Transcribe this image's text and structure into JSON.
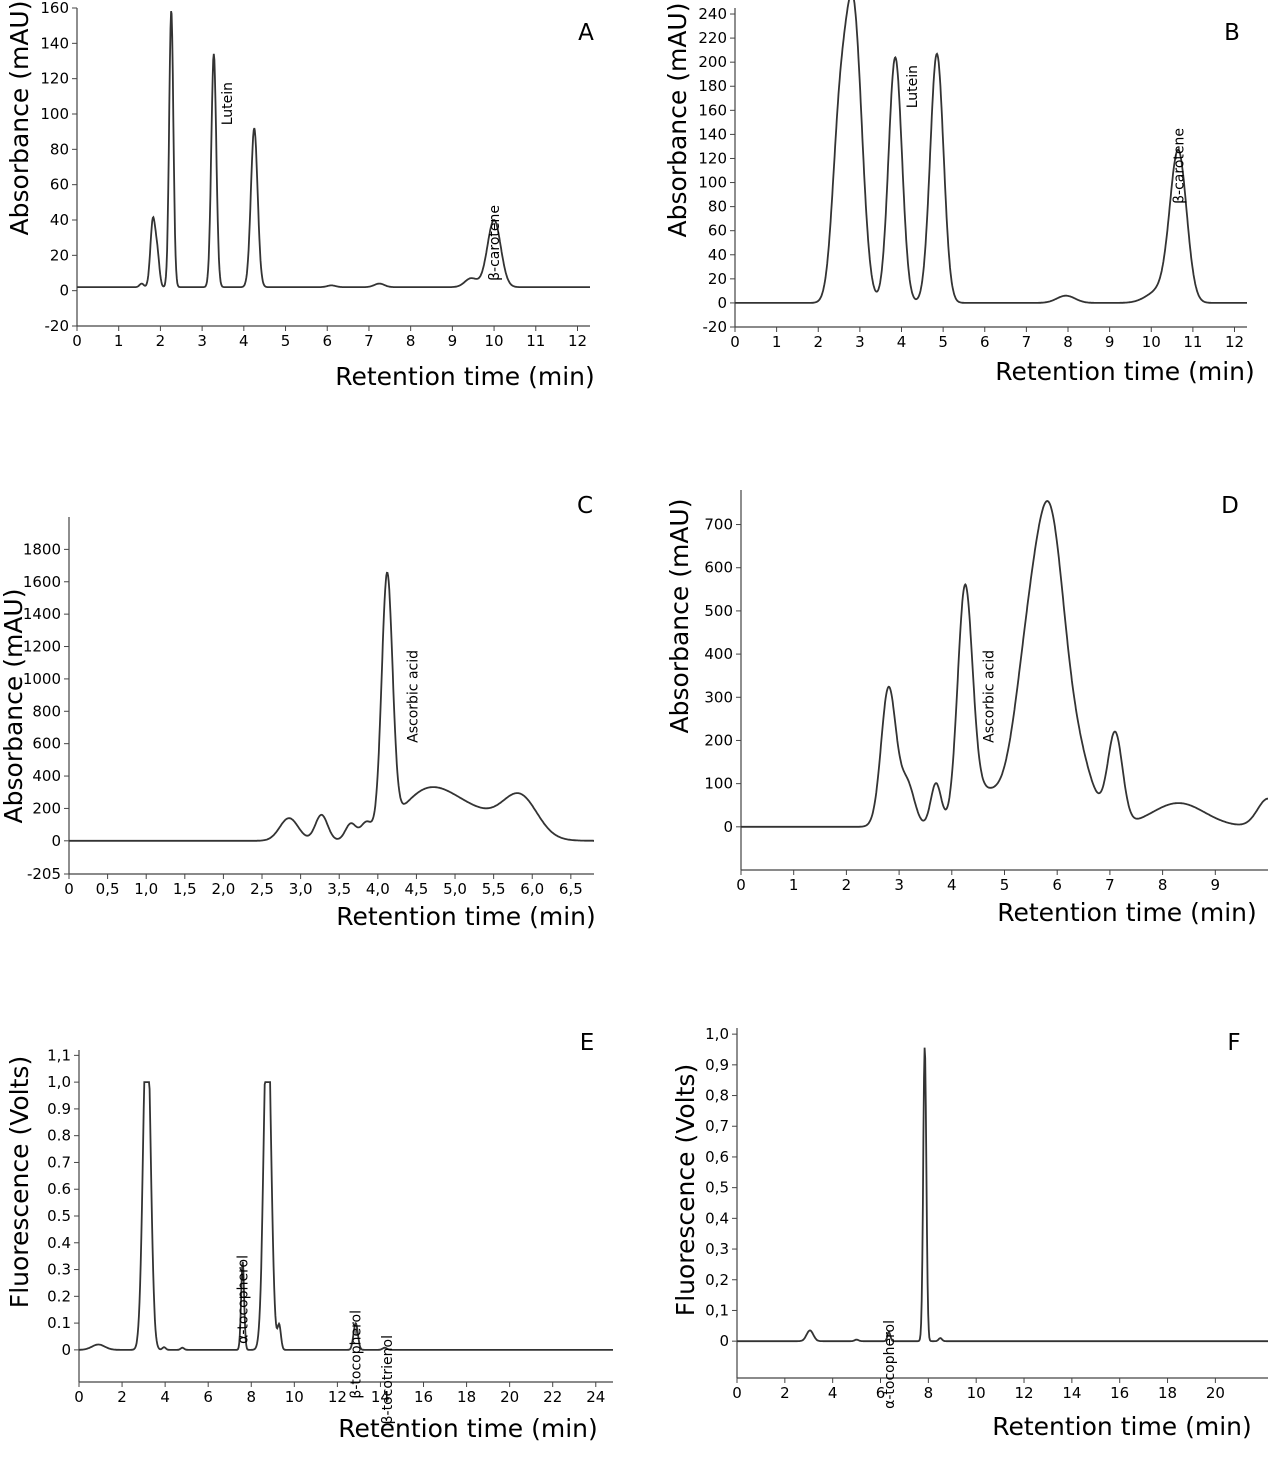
{
  "chart_data": [
    {
      "type": "line",
      "panel_label": "A",
      "xlabel": "Retention time (min)",
      "ylabel": "Absorbance (mAU)",
      "xlim": [
        0,
        12.3
      ],
      "ylim": [
        -20,
        160
      ],
      "x_ticks": [
        "0",
        "1",
        "2",
        "3",
        "4",
        "5",
        "6",
        "7",
        "8",
        "9",
        "10",
        "11",
        "12"
      ],
      "y_ticks": [
        "-20",
        "0",
        "20",
        "40",
        "60",
        "80",
        "100",
        "120",
        "140",
        "160"
      ],
      "baseline": 2,
      "peaks": [
        {
          "x": 1.55,
          "height": 2,
          "width": 0.05
        },
        {
          "x": 1.82,
          "height": 38,
          "width": 0.06
        },
        {
          "x": 1.93,
          "height": 16,
          "width": 0.05
        },
        {
          "x": 2.26,
          "height": 157,
          "width": 0.05
        },
        {
          "x": 3.28,
          "height": 132,
          "width": 0.06
        },
        {
          "x": 4.25,
          "height": 90,
          "width": 0.08
        },
        {
          "x": 6.1,
          "height": 1,
          "width": 0.1
        },
        {
          "x": 7.25,
          "height": 2,
          "width": 0.12
        },
        {
          "x": 9.45,
          "height": 5,
          "width": 0.15
        },
        {
          "x": 10.0,
          "height": 38,
          "width": 0.16
        }
      ],
      "annotations": [
        {
          "text": "Lutein",
          "x": 3.6
        },
        {
          "text": "β-carotene",
          "x": 10.0
        }
      ]
    },
    {
      "type": "line",
      "panel_label": "B",
      "xlabel": "Retention time (min)",
      "ylabel": "Absorbance (mAU)",
      "xlim": [
        0,
        12.3
      ],
      "ylim": [
        -20,
        245
      ],
      "x_ticks": [
        "0",
        "1",
        "2",
        "3",
        "4",
        "5",
        "6",
        "7",
        "8",
        "9",
        "10",
        "11",
        "12"
      ],
      "y_ticks": [
        "-20",
        "0",
        "20",
        "40",
        "60",
        "80",
        "100",
        "120",
        "140",
        "160",
        "180",
        "200",
        "220",
        "240"
      ],
      "baseline": 0,
      "peaks": [
        {
          "x": 2.5,
          "height": 128,
          "width": 0.17
        },
        {
          "x": 2.85,
          "height": 238,
          "width": 0.2
        },
        {
          "x": 3.85,
          "height": 204,
          "width": 0.16
        },
        {
          "x": 4.85,
          "height": 207,
          "width": 0.16
        },
        {
          "x": 7.95,
          "height": 6,
          "width": 0.22
        },
        {
          "x": 10.2,
          "height": 10,
          "width": 0.3
        },
        {
          "x": 10.65,
          "height": 124,
          "width": 0.2
        }
      ],
      "annotations": [
        {
          "text": "Lutein",
          "x": 4.25
        },
        {
          "text": "β-carotene",
          "x": 10.65
        }
      ]
    },
    {
      "type": "line",
      "panel_label": "C",
      "xlabel": "Retention time (min)",
      "ylabel": "Absorbance (mAU)",
      "xlim": [
        0,
        6.8
      ],
      "ylim": [
        -205,
        2000
      ],
      "x_ticks": [
        "0",
        "0,5",
        "1,0",
        "1,5",
        "2,0",
        "2,5",
        "3,0",
        "3,5",
        "4,0",
        "4,5",
        "5,0",
        "5,5",
        "6,0",
        "6,5"
      ],
      "y_ticks": [
        "-205",
        "0",
        "200",
        "400",
        "600",
        "800",
        "1000",
        "1200",
        "1400",
        "1600",
        "1800"
      ],
      "baseline": 0,
      "peaks": [
        {
          "x": 2.85,
          "height": 140,
          "width": 0.12
        },
        {
          "x": 3.27,
          "height": 160,
          "width": 0.08
        },
        {
          "x": 3.65,
          "height": 100,
          "width": 0.07
        },
        {
          "x": 3.85,
          "height": 90,
          "width": 0.07
        },
        {
          "x": 4.12,
          "height": 1550,
          "width": 0.07
        },
        {
          "x": 4.6,
          "height": 250,
          "width": 0.35
        },
        {
          "x": 5.2,
          "height": 170,
          "width": 0.45
        },
        {
          "x": 5.85,
          "height": 230,
          "width": 0.22
        }
      ],
      "annotations": [
        {
          "text": "Ascorbic acid",
          "x": 4.45
        }
      ]
    },
    {
      "type": "line",
      "panel_label": "D",
      "xlabel": "Retention time (min)",
      "ylabel": "Absorbance (mAU)",
      "xlim": [
        0,
        10.0
      ],
      "ylim": [
        -100,
        780
      ],
      "x_ticks": [
        "0",
        "1",
        "2",
        "3",
        "4",
        "5",
        "6",
        "7",
        "8",
        "9"
      ],
      "y_ticks": [
        "0",
        "100",
        "200",
        "300",
        "400",
        "500",
        "600",
        "700"
      ],
      "baseline": 0,
      "peaks": [
        {
          "x": 2.8,
          "height": 320,
          "width": 0.14
        },
        {
          "x": 3.15,
          "height": 100,
          "width": 0.14
        },
        {
          "x": 3.7,
          "height": 100,
          "width": 0.1
        },
        {
          "x": 4.25,
          "height": 520,
          "width": 0.14
        },
        {
          "x": 4.6,
          "height": 80,
          "width": 0.3
        },
        {
          "x": 5.5,
          "height": 430,
          "width": 0.3
        },
        {
          "x": 5.9,
          "height": 500,
          "width": 0.25
        },
        {
          "x": 6.35,
          "height": 170,
          "width": 0.3
        },
        {
          "x": 7.1,
          "height": 210,
          "width": 0.14
        },
        {
          "x": 8.3,
          "height": 55,
          "width": 0.5
        },
        {
          "x": 10.0,
          "height": 65,
          "width": 0.2
        }
      ],
      "annotations": [
        {
          "text": "Ascorbic acid",
          "x": 4.7
        }
      ]
    },
    {
      "type": "line",
      "panel_label": "E",
      "xlabel": "Retention time (min)",
      "ylabel": "Fluorescence (Volts)",
      "xlim": [
        0,
        24.8
      ],
      "ylim": [
        -0.12,
        1.12
      ],
      "x_ticks": [
        "0",
        "2",
        "4",
        "6",
        "8",
        "10",
        "12",
        "14",
        "16",
        "18",
        "20",
        "22",
        "24"
      ],
      "y_ticks": [
        "0",
        "0.1",
        "0.2",
        "0.3",
        "0.4",
        "0.5",
        "0.6",
        "0.7",
        "0.8",
        "0.9",
        "1,0",
        "1,1"
      ],
      "baseline": 0,
      "clip": 1.0,
      "peaks": [
        {
          "x": 0.9,
          "height": 0.02,
          "width": 0.3
        },
        {
          "x": 3.15,
          "height": 1.3,
          "width": 0.17
        },
        {
          "x": 3.95,
          "height": 0.01,
          "width": 0.08
        },
        {
          "x": 4.8,
          "height": 0.008,
          "width": 0.08
        },
        {
          "x": 7.6,
          "height": 0.33,
          "width": 0.07
        },
        {
          "x": 8.75,
          "height": 1.3,
          "width": 0.17
        },
        {
          "x": 9.3,
          "height": 0.09,
          "width": 0.08
        },
        {
          "x": 12.85,
          "height": 0.1,
          "width": 0.1
        },
        {
          "x": 14.2,
          "height": 0.008,
          "width": 0.1
        }
      ],
      "annotations": [
        {
          "text": "α-tocopherol",
          "x": 7.6
        },
        {
          "text": "β-tocopherol",
          "x": 12.85
        },
        {
          "text": "β-tocotrienol",
          "x": 14.3
        }
      ]
    },
    {
      "type": "line",
      "panel_label": "F",
      "xlabel": "Retention time (min)",
      "ylabel": "Fluorescence (Volts)",
      "xlim": [
        0,
        22.2
      ],
      "ylim": [
        -0.12,
        1.02
      ],
      "x_ticks": [
        "0",
        "2",
        "4",
        "6",
        "8",
        "10",
        "12",
        "14",
        "16",
        "18",
        "20"
      ],
      "y_ticks": [
        "0",
        "0,1",
        "0,2",
        "0,3",
        "0,4",
        "0,5",
        "0,6",
        "0,7",
        "0,8",
        "0,9",
        "1,0"
      ],
      "baseline": 0,
      "peaks": [
        {
          "x": 3.05,
          "height": 0.035,
          "width": 0.14
        },
        {
          "x": 5.0,
          "height": 0.005,
          "width": 0.08
        },
        {
          "x": 6.35,
          "height": 0.03,
          "width": 0.06
        },
        {
          "x": 7.85,
          "height": 0.96,
          "width": 0.065
        },
        {
          "x": 8.5,
          "height": 0.01,
          "width": 0.07
        }
      ],
      "annotations": [
        {
          "text": "α-tocopherol",
          "x": 6.35
        }
      ]
    }
  ]
}
